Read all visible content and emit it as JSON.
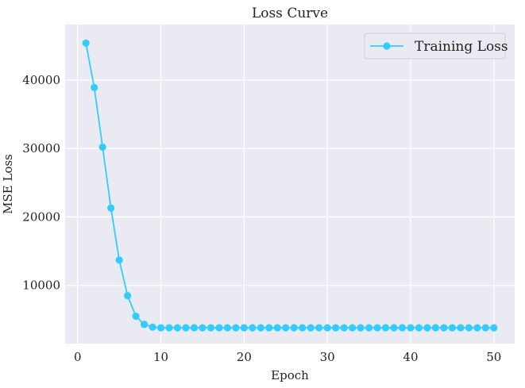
{
  "chart_data": {
    "type": "line",
    "title": "Loss Curve",
    "xlabel": "Epoch",
    "ylabel": "MSE Loss",
    "xlim": [
      -1.5,
      52.5
    ],
    "ylim": [
      1500,
      48100
    ],
    "xticks": [
      0,
      10,
      20,
      30,
      40,
      50
    ],
    "yticks": [
      10000,
      20000,
      30000,
      40000
    ],
    "grid": true,
    "legend_position": "top-right",
    "background": "#eaeaf2",
    "series": [
      {
        "name": "Training Loss",
        "color": "#33ccff",
        "marker": "circle",
        "x": [
          1,
          2,
          3,
          4,
          5,
          6,
          7,
          8,
          9,
          10,
          11,
          12,
          13,
          14,
          15,
          16,
          17,
          18,
          19,
          20,
          21,
          22,
          23,
          24,
          25,
          26,
          27,
          28,
          29,
          30,
          31,
          32,
          33,
          34,
          35,
          36,
          37,
          38,
          39,
          40,
          41,
          42,
          43,
          44,
          45,
          46,
          47,
          48,
          49,
          50
        ],
        "values": [
          45400,
          38900,
          30200,
          21300,
          13700,
          8500,
          5500,
          4300,
          3900,
          3800,
          3800,
          3800,
          3800,
          3800,
          3800,
          3800,
          3800,
          3800,
          3800,
          3800,
          3800,
          3800,
          3800,
          3800,
          3800,
          3800,
          3800,
          3800,
          3800,
          3800,
          3800,
          3800,
          3800,
          3800,
          3800,
          3800,
          3800,
          3800,
          3800,
          3800,
          3800,
          3800,
          3800,
          3800,
          3800,
          3800,
          3800,
          3800,
          3800,
          3800
        ]
      }
    ]
  }
}
